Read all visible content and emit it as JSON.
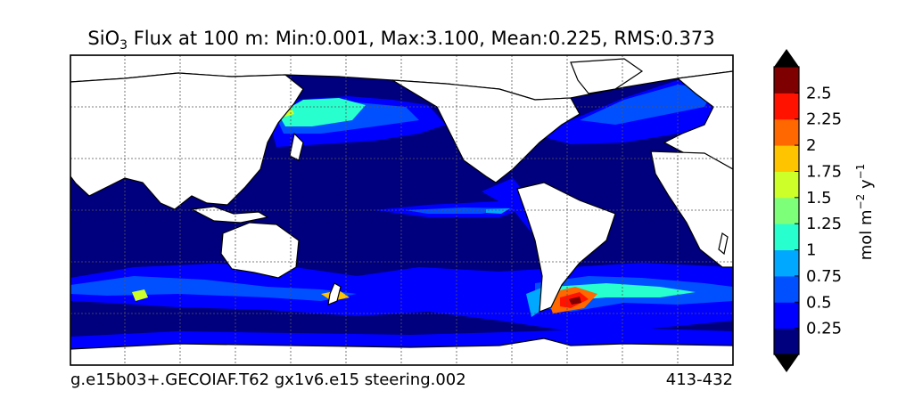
{
  "chart_data": {
    "type": "heatmap",
    "title": "SiO",
    "title_subscript": "3",
    "title_rest": " Flux at 100 m: Min:0.001, Max:3.100, Mean:0.225, RMS:0.373",
    "footer_left": "g.e15b03+.GECOIAF.T62 gx1v6.e15 steering.002",
    "footer_right": "413-432",
    "colorbar": {
      "label_main": "mol m",
      "label_exp1": "−2",
      "label_mid": " y",
      "label_exp2": "−1",
      "ticks": [
        "0.25",
        "0.5",
        "0.75",
        "1",
        "1.25",
        "1.5",
        "1.75",
        "2",
        "2.25",
        "2.5"
      ],
      "levels": [
        0,
        0.25,
        0.5,
        0.75,
        1,
        1.25,
        1.5,
        1.75,
        2,
        2.25,
        2.5,
        2.75
      ],
      "colors": [
        "#00007f",
        "#0000ff",
        "#0050ff",
        "#00a8ff",
        "#27ffcf",
        "#7dff7a",
        "#cdff29",
        "#ffc400",
        "#ff6800",
        "#ff1300",
        "#7f0000"
      ],
      "under_color": "#000000",
      "over_color": "#000000"
    },
    "colors": {
      "ocean": "#00007f",
      "land": "#ffffff"
    }
  }
}
